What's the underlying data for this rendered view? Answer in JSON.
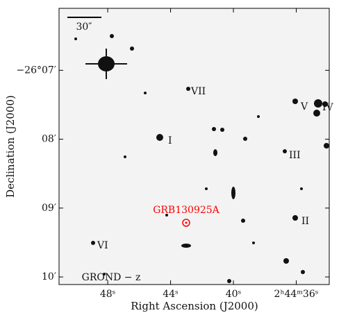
{
  "chart_data": {
    "type": "image",
    "xlabel": "Right Ascension (J2000)",
    "ylabel": "Declination (J2000)",
    "xlim": [
      51.1,
      33.9
    ],
    "ylim": [
      10.11,
      6.1
    ],
    "xticks": [
      {
        "value": 48,
        "label": "48ˢ"
      },
      {
        "value": 44,
        "label": "44ˢ"
      },
      {
        "value": 40,
        "label": "40ˢ"
      },
      {
        "value": 36,
        "label": "2ʰ44ᵐ36ˢ"
      }
    ],
    "yticks": [
      {
        "value": 7,
        "label": "−26°07′"
      },
      {
        "value": 8,
        "label": "08′"
      },
      {
        "value": 9,
        "label": "09′"
      },
      {
        "value": 10,
        "label": "10′"
      }
    ],
    "annotations": {
      "scale": "30″",
      "band": "GROND − z",
      "target": "GRB130925A",
      "target_color": "#ff0000",
      "sources": [
        "I",
        "II",
        "III",
        "IV",
        "V",
        "VI",
        "VII"
      ]
    }
  }
}
